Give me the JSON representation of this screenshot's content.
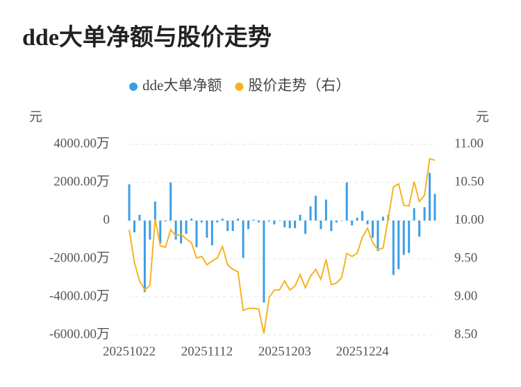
{
  "chart_data": {
    "type": "bar_line",
    "title": "dde大单净额与股价走势",
    "y_label": "元",
    "y2_label": "元",
    "categories": [
      "20251022",
      null,
      null,
      null,
      null,
      null,
      null,
      null,
      null,
      null,
      null,
      null,
      null,
      null,
      null,
      "20251112",
      null,
      null,
      null,
      null,
      null,
      null,
      null,
      null,
      null,
      null,
      null,
      null,
      null,
      null,
      "20251203",
      null,
      null,
      null,
      null,
      null,
      null,
      null,
      null,
      null,
      null,
      null,
      null,
      null,
      null,
      "20251224",
      null,
      null,
      null,
      null,
      null,
      null,
      null,
      null,
      null,
      null,
      null,
      null,
      null,
      null
    ],
    "series": [
      {
        "name": "dde大单净额",
        "type": "bar",
        "color": "#3a9ee6",
        "values": [
          1900,
          -620,
          300,
          -3750,
          -1000,
          1000,
          -1200,
          -50,
          2000,
          -1000,
          -1200,
          -700,
          100,
          -1400,
          -100,
          -900,
          -1300,
          -100,
          100,
          -550,
          -550,
          100,
          -1950,
          -450,
          50,
          -100,
          -4300,
          -50,
          -200,
          0,
          -350,
          -400,
          -400,
          300,
          -700,
          750,
          1300,
          -450,
          1100,
          -550,
          -100,
          0,
          2000,
          -250,
          150,
          500,
          -200,
          -900,
          -1600,
          200,
          300,
          -2850,
          -2550,
          -1800,
          -1700,
          650,
          -850,
          700,
          2500,
          1400
        ]
      },
      {
        "name": "股价走势（右）",
        "type": "line",
        "axis": "y2",
        "color": "#f5b320",
        "values": [
          9.88,
          9.45,
          9.21,
          9.09,
          9.15,
          10.02,
          9.67,
          9.65,
          9.88,
          9.8,
          9.82,
          9.76,
          9.71,
          9.51,
          9.53,
          9.42,
          9.47,
          9.51,
          9.66,
          9.42,
          9.36,
          9.33,
          8.82,
          8.85,
          8.85,
          8.84,
          8.52,
          8.99,
          9.09,
          9.09,
          9.21,
          9.09,
          9.14,
          9.29,
          9.12,
          9.27,
          9.36,
          9.23,
          9.49,
          9.16,
          9.18,
          9.25,
          9.57,
          9.53,
          9.57,
          9.78,
          9.9,
          9.71,
          9.62,
          9.64,
          10.03,
          10.44,
          10.48,
          10.2,
          10.19,
          10.51,
          10.25,
          10.33,
          10.81,
          10.79
        ]
      }
    ],
    "ylim": [
      -6000,
      4000
    ],
    "yticks": [
      {
        "value": 4000,
        "label": "4000.00万"
      },
      {
        "value": 2000,
        "label": "2000.00万"
      },
      0,
      {
        "value": -2000,
        "label": "-2000.00万"
      },
      {
        "value": -4000,
        "label": "-4000.00万"
      },
      {
        "value": -6000,
        "label": "-6000.00万"
      }
    ],
    "y2lim": [
      8.5,
      11
    ],
    "y2ticks": [
      {
        "value": 11,
        "label": "11.00"
      },
      {
        "value": 10.5,
        "label": "10.50"
      },
      {
        "value": 10,
        "label": "10.00"
      },
      {
        "value": 9.5,
        "label": "9.50"
      },
      {
        "value": 9,
        "label": "9.00"
      },
      {
        "value": 8.5,
        "label": "8.50"
      }
    ],
    "grid": true
  }
}
